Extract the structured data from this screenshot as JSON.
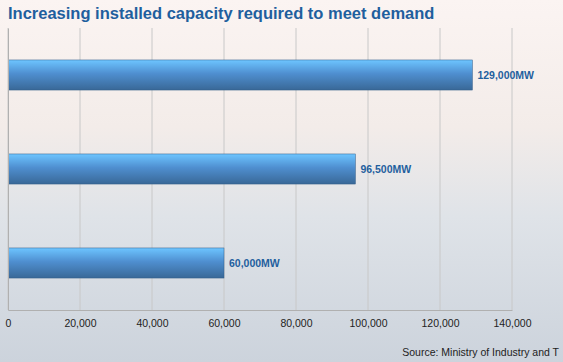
{
  "chart_data": {
    "type": "bar",
    "orientation": "horizontal",
    "title": "Increasing installed capacity required to meet demand",
    "source": "Source: Ministry of Industry and T",
    "categories": [
      null,
      null,
      null
    ],
    "values": [
      129000,
      96500,
      60000
    ],
    "value_labels": [
      "129,000MW",
      "96,500MW",
      "60,000MW"
    ],
    "data_labels": true,
    "color": "#4f8fd0",
    "xlim": [
      0,
      140000
    ],
    "xticks": [
      0,
      {
        "value": 20000,
        "label": "20,000"
      },
      {
        "value": 40000,
        "label": "40,000"
      },
      {
        "value": 60000,
        "label": "60,000"
      },
      {
        "value": 80000,
        "label": "80,000"
      },
      {
        "value": 100000,
        "label": "100,000"
      },
      {
        "value": 120000,
        "label": "120,000"
      },
      {
        "value": 140000,
        "label": "140,000"
      }
    ],
    "grid": true
  }
}
